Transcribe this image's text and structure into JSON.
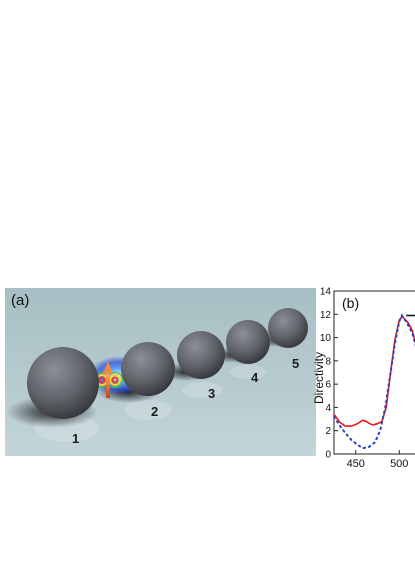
{
  "panel_a": {
    "label": "(a)",
    "sphere_labels": [
      "1",
      "2",
      "3",
      "4",
      "5"
    ],
    "colors": {
      "background": "#b7ccd0",
      "sphere": "#5a5d63",
      "dipole": "#e0762a"
    }
  },
  "panel_b": {
    "label": "(b)"
  },
  "chart_data": {
    "type": "line",
    "title": "",
    "xlabel": "",
    "ylabel": "Directivity",
    "xlim": [
      425,
      525
    ],
    "ylim": [
      0,
      14
    ],
    "xticks": [
      450,
      500
    ],
    "yticks": [
      0,
      2,
      4,
      6,
      8,
      10,
      12,
      14
    ],
    "series": [
      {
        "style": "solid",
        "color": "#e31a1c",
        "x": [
          425,
          432,
          438,
          445,
          452,
          458,
          462,
          466,
          470,
          475,
          480,
          485,
          490,
          495,
          500,
          503,
          506,
          510,
          515,
          520,
          525
        ],
        "y": [
          3.4,
          2.7,
          2.4,
          2.4,
          2.6,
          2.9,
          2.8,
          2.6,
          2.5,
          2.6,
          2.8,
          4.0,
          7.0,
          9.8,
          11.5,
          11.8,
          11.6,
          11.3,
          10.6,
          9.2,
          8.0
        ]
      },
      {
        "style": "dotted",
        "color": "#2b3fbf",
        "x": [
          425,
          432,
          438,
          445,
          452,
          458,
          465,
          472,
          478,
          484,
          490,
          495,
          500,
          503,
          506,
          510,
          515,
          520,
          525
        ],
        "y": [
          3.2,
          2.4,
          1.8,
          1.2,
          0.8,
          0.5,
          0.6,
          1.0,
          2.0,
          4.0,
          7.0,
          9.5,
          11.4,
          11.9,
          11.6,
          11.1,
          10.4,
          9.0,
          7.8
        ]
      },
      {
        "style": "solid",
        "color": "#1a1a1a",
        "x": [
          508,
          525
        ],
        "y": [
          11.9,
          11.9
        ]
      }
    ],
    "grid": false,
    "legend": "none"
  }
}
